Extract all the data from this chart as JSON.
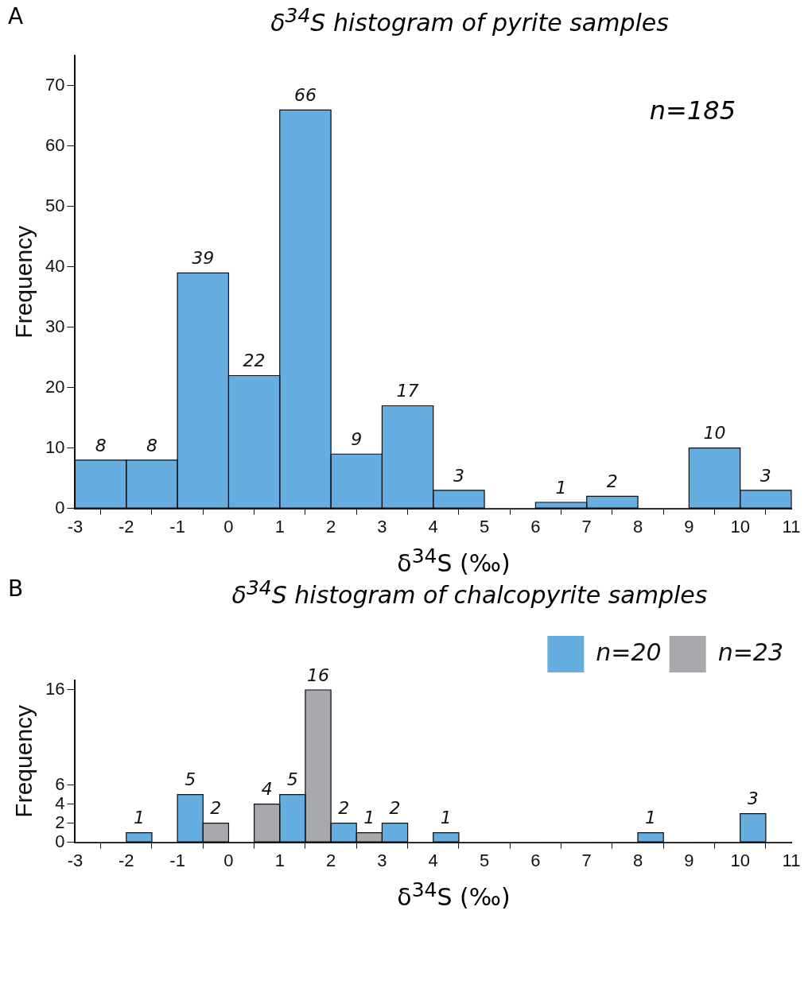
{
  "chart_data": [
    {
      "type": "histogram",
      "title": "δ$^{34}$S histogram of pyrite samples",
      "xlabel": "δ$^{34}$S (‰)",
      "ylabel": "Frequency",
      "annotations": [
        "A",
        "n=185"
      ],
      "bins": [
        -3,
        -2,
        -1,
        0,
        1,
        2,
        3,
        4,
        5,
        6,
        7,
        8,
        9,
        10,
        11
      ],
      "values": [
        8,
        8,
        39,
        22,
        66,
        9,
        17,
        3,
        0,
        1,
        2,
        0,
        10,
        3
      ],
      "value_labels": [
        "8",
        "8",
        "39",
        "22",
        "66",
        "9",
        "17",
        "3",
        null,
        "1",
        "2",
        null,
        "10",
        "3"
      ],
      "color": "#66aee0",
      "xlim": [
        -3,
        11
      ],
      "xticks": [
        -3,
        -2,
        -1,
        0,
        1,
        2,
        3,
        4,
        5,
        6,
        7,
        8,
        9,
        10,
        11
      ],
      "ylim": [
        0,
        75
      ],
      "yticks": [
        0,
        10,
        20,
        30,
        40,
        50,
        60,
        70
      ],
      "grid": false,
      "legend": false
    },
    {
      "type": "histogram",
      "title": "δ$^{34}$S histogram of chalcopyrite samples",
      "xlabel": "δ$^{34}$S (‰)",
      "ylabel": "Frequency",
      "annotations": [
        "B"
      ],
      "bins": [
        -3,
        -2,
        -1,
        0,
        1,
        2,
        3,
        4,
        5,
        6,
        7,
        8,
        9,
        10,
        11
      ],
      "series": [
        {
          "name": "n=20",
          "color": "#66aee0",
          "values": [
            0,
            1,
            5,
            0,
            5,
            2,
            2,
            1,
            0,
            0,
            0,
            1,
            0,
            3
          ],
          "value_labels": [
            null,
            "1",
            "5",
            null,
            "5",
            "2",
            "2",
            "1",
            null,
            null,
            null,
            "1",
            null,
            "3"
          ]
        },
        {
          "name": "n=23",
          "color": "#a7a9ac",
          "values": [
            0,
            0,
            2,
            4,
            16,
            1,
            0,
            0,
            0,
            0,
            0,
            0,
            0,
            0
          ],
          "value_labels": [
            null,
            null,
            "2",
            "4",
            "16",
            "1",
            null,
            null,
            null,
            null,
            null,
            null,
            null,
            null
          ]
        }
      ],
      "xlim": [
        -3,
        11
      ],
      "xticks": [
        -3,
        -2,
        -1,
        0,
        1,
        2,
        3,
        4,
        5,
        6,
        7,
        8,
        9,
        10,
        11
      ],
      "ylim": [
        0,
        17
      ],
      "yticks": [
        0,
        2,
        4,
        6,
        16
      ],
      "grid": false,
      "legend": "top right"
    }
  ]
}
